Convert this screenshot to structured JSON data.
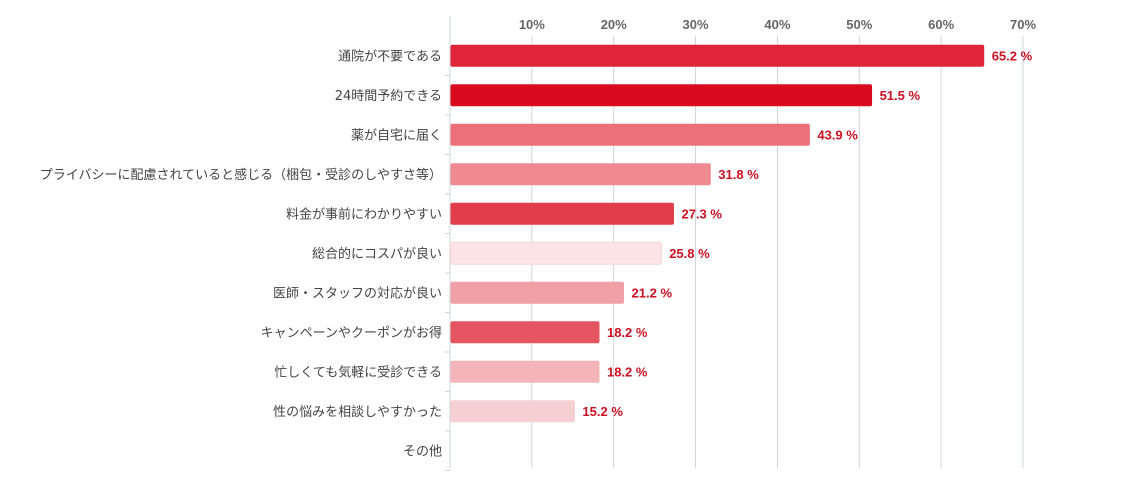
{
  "chart_data": {
    "type": "bar",
    "orientation": "horizontal",
    "title": "",
    "xlabel": "",
    "ylabel": "",
    "xlim": [
      0,
      70
    ],
    "ticks": [
      10,
      20,
      30,
      40,
      50,
      60,
      70
    ],
    "tick_labels": [
      "10%",
      "20%",
      "30%",
      "40%",
      "50%",
      "60%",
      "70%"
    ],
    "grid": true,
    "label_color": "#cc1122",
    "categories": [
      "通院が不要である",
      "24時間予約できる",
      "薬が自宅に届く",
      "プライバシーに配慮されていると感じる（梱包・受診のしやすさ等）",
      "料金が事前にわかりやすい",
      "総合的にコスパが良い",
      "医師・スタッフの対応が良い",
      "キャンペーンやクーポンがお得",
      "忙しくても気軽に受診できる",
      "性の悩みを相談しやすかった",
      "その他"
    ],
    "values": [
      65.2,
      51.5,
      43.9,
      31.8,
      27.3,
      25.8,
      21.2,
      18.2,
      18.2,
      15.2,
      null
    ],
    "value_labels": [
      "65.2 %",
      "51.5 %",
      "43.9 %",
      "31.8 %",
      "27.3 %",
      "25.8 %",
      "21.2 %",
      "18.2 %",
      "18.2 %",
      "15.2 %",
      ""
    ],
    "colors": [
      "#e0253a",
      "#d80c1e",
      "#eb7079",
      "#ee8a90",
      "#e23d4b",
      "#fce4e6",
      "#f0a0a6",
      "#e55561",
      "#f3b5b9",
      "#f6cfd3",
      "#ffffff"
    ]
  }
}
